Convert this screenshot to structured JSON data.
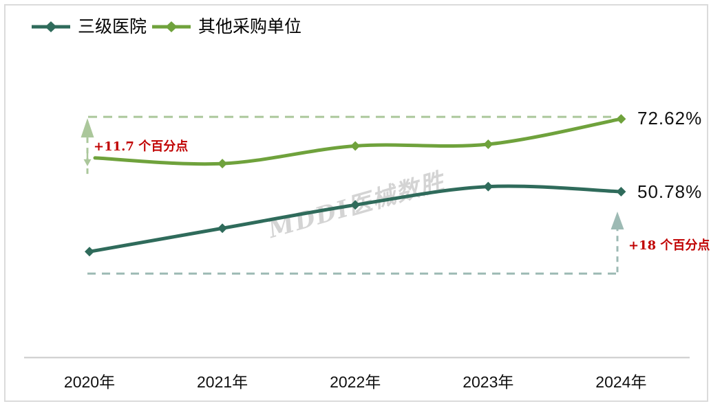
{
  "legend": {
    "items": [
      {
        "label": "三级医院",
        "color": "#2F6B5B"
      },
      {
        "label": "其他采购单位",
        "color": "#6FA23C"
      }
    ]
  },
  "chart_data": {
    "type": "line",
    "categories": [
      "2020年",
      "2021年",
      "2022年",
      "2023年",
      "2024年"
    ],
    "series": [
      {
        "name": "三级医院",
        "color": "#2F6B5B",
        "values": [
          32.78,
          39.8,
          46.8,
          52.3,
          50.78
        ],
        "end_label": "50.78%"
      },
      {
        "name": "其他采购单位",
        "color": "#6FA23C",
        "values": [
          60.9,
          59.2,
          64.5,
          65.0,
          72.62
        ],
        "end_label": "72.62%"
      }
    ],
    "ylim": [
      25,
      80
    ],
    "grid": false,
    "legend_position": "top-left"
  },
  "value_labels": {
    "green": "72.62%",
    "teal": "50.78%"
  },
  "annotations": {
    "left": {
      "text": "+11.7 个百分点",
      "color": "#C00000"
    },
    "right": {
      "text": "+18 个百分点",
      "color": "#C00000"
    }
  },
  "watermark": {
    "text": "MDDI医械数胜"
  },
  "colors": {
    "teal": "#2F6B5B",
    "green": "#6FA23C",
    "light_green": "#ABC79B",
    "gray_teal": "#9DBAB4",
    "red": "#C00000",
    "axis": "#CACACA",
    "border": "#DBDBDB"
  }
}
